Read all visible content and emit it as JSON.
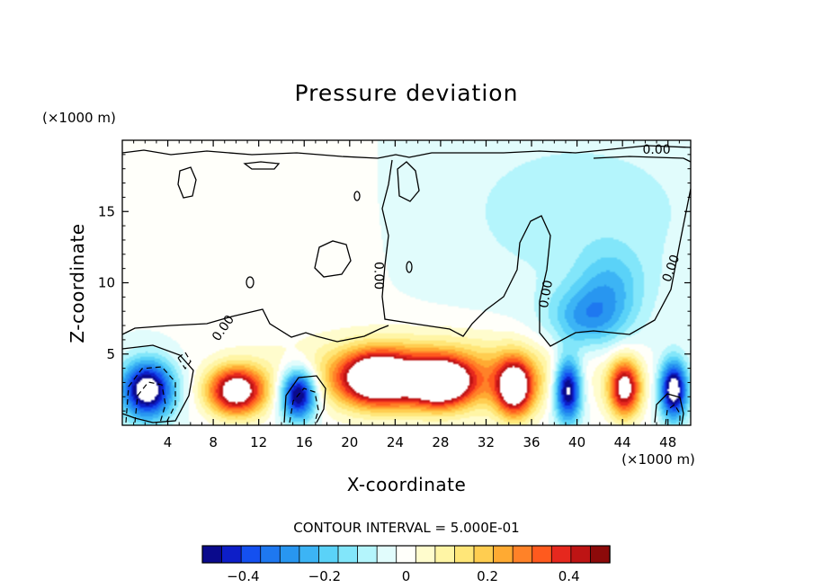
{
  "chart_data": {
    "type": "heatmap",
    "title": "Pressure deviation",
    "xlabel": "X-coordinate",
    "ylabel": "Z-coordinate",
    "x_unit": "(×1000 m)",
    "y_unit": "(×1000 m)",
    "xlim": [
      0,
      50
    ],
    "ylim": [
      0,
      20
    ],
    "x_ticks": [
      4,
      8,
      12,
      16,
      20,
      24,
      28,
      32,
      36,
      40,
      44,
      48
    ],
    "x_tick_labels": [
      "4",
      "8",
      "12",
      "16",
      "20",
      "24",
      "28",
      "32",
      "36",
      "40",
      "44",
      "48"
    ],
    "y_ticks": [
      5,
      10,
      15
    ],
    "y_tick_labels": [
      "5",
      "10",
      "15"
    ],
    "contour_interval_text": "CONTOUR INTERVAL = 5.000E-01",
    "contour_labels": [
      {
        "text": "0.00",
        "x": 47,
        "z": 19.3,
        "angle": 0
      },
      {
        "text": "0.00",
        "x": 8.9,
        "z": 6.8,
        "angle": -55
      },
      {
        "text": "0.00",
        "x": 22.5,
        "z": 10.5,
        "angle": 90
      },
      {
        "text": "0.00",
        "x": 37.3,
        "z": 9.2,
        "angle": -80
      },
      {
        "text": "0.00",
        "x": 48.3,
        "z": 11.0,
        "angle": -70
      }
    ],
    "colorbar": {
      "boundaries": [
        -0.5,
        -0.45,
        -0.4,
        -0.35,
        -0.3,
        -0.25,
        -0.2,
        -0.15,
        -0.1,
        -0.05,
        0,
        0.05,
        0.1,
        0.15,
        0.2,
        0.25,
        0.3,
        0.35,
        0.4,
        0.45,
        0.5
      ],
      "colors": [
        "#0a0a8c",
        "#0d1ec8",
        "#1450f0",
        "#1e78f0",
        "#2896f0",
        "#3cb4f5",
        "#5ad2f8",
        "#82e6fa",
        "#b4f5fc",
        "#e1fcfc",
        "#fffffa",
        "#fffccd",
        "#fff5a5",
        "#ffe678",
        "#ffcd50",
        "#ffaa32",
        "#ff8228",
        "#ff5a1e",
        "#e6281e",
        "#be1414",
        "#8c0a0a"
      ],
      "tick_values": [
        -0.4,
        -0.2,
        0,
        0.2,
        0.4
      ],
      "tick_labels": [
        "−0.4",
        "−0.2",
        "0",
        "0.2",
        "0.4"
      ]
    },
    "regions": [
      {
        "name": "upper-left-positive",
        "value": 0.03,
        "x": 10,
        "z": 14,
        "sx": 12,
        "sz": 7
      },
      {
        "name": "upper-right-negative",
        "value": -0.08,
        "x": 40,
        "z": 15,
        "sx": 12,
        "sz": 6
      },
      {
        "name": "mid-right-negative-core",
        "value": -0.25,
        "x": 41,
        "z": 7.5,
        "sx": 3.5,
        "sz": 2.2
      },
      {
        "name": "mid-right-negative-arm",
        "value": -0.15,
        "x": 43,
        "z": 10,
        "sx": 3,
        "sz": 2.5
      },
      {
        "name": "low-left-strong-negative",
        "value": -0.6,
        "x": 2.2,
        "z": 2.5,
        "sx": 2.3,
        "sz": 2
      },
      {
        "name": "low-left-negative-2",
        "value": -0.6,
        "x": 15.5,
        "z": 2.2,
        "sx": 1.6,
        "sz": 1.8
      },
      {
        "name": "low-negative-3",
        "value": -0.6,
        "x": 39.2,
        "z": 2.5,
        "sx": 1.2,
        "sz": 2.2
      },
      {
        "name": "low-negative-4",
        "value": -0.6,
        "x": 48.5,
        "z": 2.5,
        "sx": 1.2,
        "sz": 2
      },
      {
        "name": "low-positive-1",
        "value": 0.6,
        "x": 10,
        "z": 2.4,
        "sx": 2.5,
        "sz": 1.7
      },
      {
        "name": "low-positive-2",
        "value": 0.6,
        "x": 22.5,
        "z": 3.3,
        "sx": 3.2,
        "sz": 1.8
      },
      {
        "name": "low-positive-3",
        "value": 0.6,
        "x": 28,
        "z": 3.0,
        "sx": 2.6,
        "sz": 1.6
      },
      {
        "name": "low-positive-4",
        "value": 0.55,
        "x": 34.5,
        "z": 2.6,
        "sx": 1.6,
        "sz": 2
      },
      {
        "name": "low-positive-5",
        "value": 0.55,
        "x": 44.2,
        "z": 2.6,
        "sx": 1.4,
        "sz": 2
      },
      {
        "name": "low-positive-band",
        "value": 0.3,
        "x": 27,
        "z": 3.5,
        "sx": 12,
        "sz": 2.6
      }
    ]
  }
}
